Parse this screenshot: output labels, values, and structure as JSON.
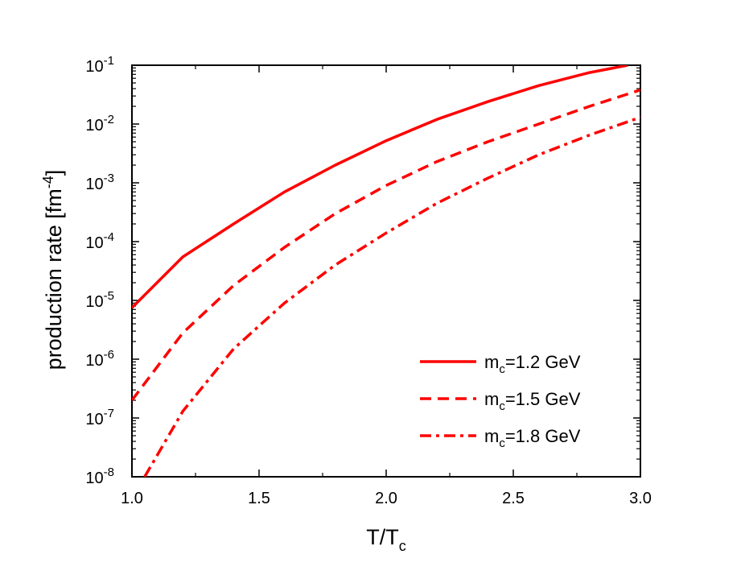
{
  "chart_data": {
    "type": "line",
    "xlabel": {
      "main": "T/T",
      "sub": "c"
    },
    "ylabel": {
      "main": "production rate [fm",
      "sup": "-4",
      "tail": "]"
    },
    "xlim": [
      1.0,
      3.0
    ],
    "ylim": [
      1e-08,
      0.1
    ],
    "yscale": "log",
    "grid": false,
    "legend_position": "bottom-right",
    "x_ticks": [
      {
        "value": 1.0,
        "label": "1.0"
      },
      {
        "value": 1.5,
        "label": "1.5"
      },
      {
        "value": 2.0,
        "label": "2.0"
      },
      {
        "value": 2.5,
        "label": "2.5"
      },
      {
        "value": 3.0,
        "label": "3.0"
      }
    ],
    "y_ticks": [
      {
        "exp": -8,
        "base": "10",
        "sup": "-8"
      },
      {
        "exp": -7,
        "base": "10",
        "sup": "-7"
      },
      {
        "exp": -6,
        "base": "10",
        "sup": "-6"
      },
      {
        "exp": -5,
        "base": "10",
        "sup": "-5"
      },
      {
        "exp": -4,
        "base": "10",
        "sup": "-4"
      },
      {
        "exp": -3,
        "base": "10",
        "sup": "-3"
      },
      {
        "exp": -2,
        "base": "10",
        "sup": "-2"
      },
      {
        "exp": -1,
        "base": "10",
        "sup": "-1"
      }
    ],
    "series": [
      {
        "name": "m_c=1.2 GeV",
        "legend": {
          "pre": "m",
          "sub": "c",
          "post": "=1.2 GeV"
        },
        "color": "#ff0000",
        "dash": "solid",
        "x": [
          1.0,
          1.2,
          1.4,
          1.6,
          1.8,
          2.0,
          2.2,
          2.4,
          2.6,
          2.8,
          2.95
        ],
        "y": [
          7.5e-06,
          5.5e-05,
          0.0002,
          0.0007,
          0.002,
          0.0052,
          0.012,
          0.024,
          0.045,
          0.075,
          0.1
        ]
      },
      {
        "name": "m_c=1.5 GeV",
        "legend": {
          "pre": "m",
          "sub": "c",
          "post": "=1.5 GeV"
        },
        "color": "#ff0000",
        "dash": "dash",
        "x": [
          1.0,
          1.2,
          1.4,
          1.6,
          1.8,
          2.0,
          2.2,
          2.4,
          2.6,
          2.8,
          3.0
        ],
        "y": [
          2e-07,
          2.8e-06,
          1.8e-05,
          8e-05,
          0.0003,
          0.0009,
          0.0023,
          0.005,
          0.01,
          0.02,
          0.038
        ]
      },
      {
        "name": "m_c=1.8 GeV",
        "legend": {
          "pre": "m",
          "sub": "c",
          "post": "=1.8 GeV"
        },
        "color": "#ff0000",
        "dash": "dashdot",
        "x": [
          1.05,
          1.2,
          1.4,
          1.6,
          1.8,
          2.0,
          2.2,
          2.4,
          2.6,
          2.8,
          3.0
        ],
        "y": [
          1e-08,
          1.3e-07,
          1.5e-06,
          9e-06,
          4e-05,
          0.00014,
          0.00045,
          0.0012,
          0.003,
          0.0065,
          0.013
        ]
      }
    ]
  }
}
